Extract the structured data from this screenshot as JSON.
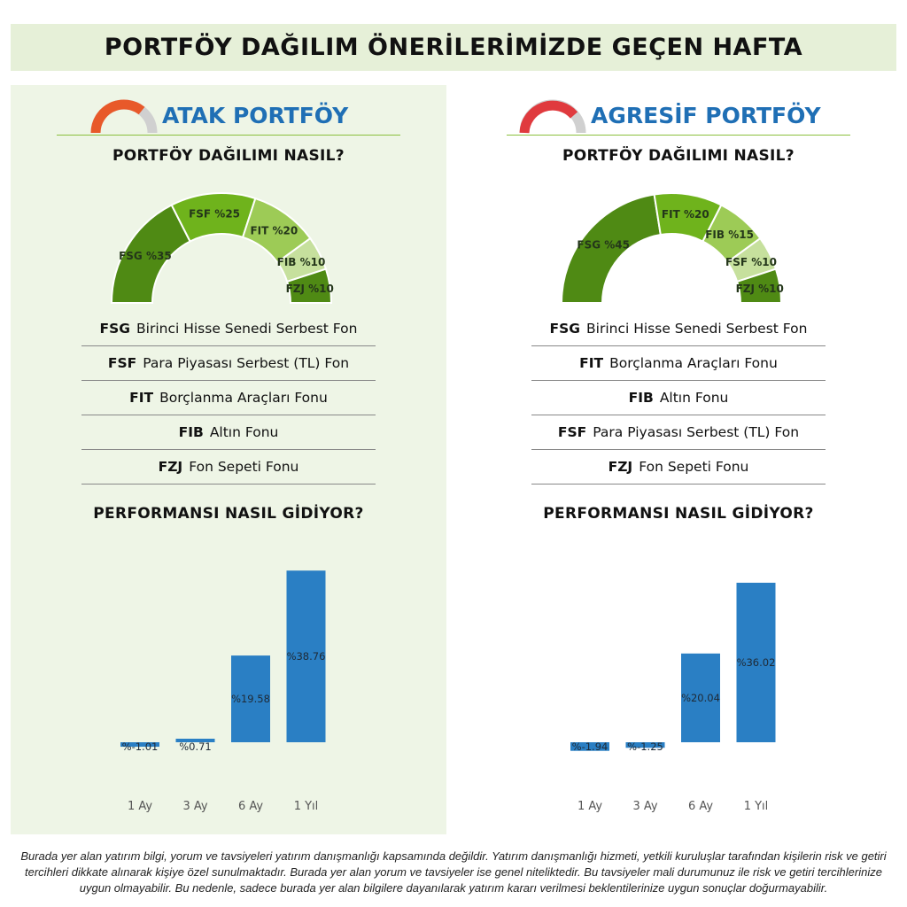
{
  "header": {
    "title": "PORTFÖY DAĞILIM ÖNERİLERİMİZDE GEÇEN HAFTA"
  },
  "colors": {
    "left_panel_bg": "#eef5e6",
    "banner_bg": "#e6f0d8",
    "title_blue": "#1f6fb5",
    "bar_blue": "#2a7fc4",
    "gauge_greens": [
      "#4f8a14",
      "#6fb31c",
      "#9dcb56",
      "#c6e09d",
      "#4f8a14"
    ]
  },
  "left": {
    "title": "ATAK PORTFÖY",
    "logo_icon": "gauge-icon-orange",
    "allocation_heading": "PORTFÖY DAĞILIMI NASIL?",
    "performance_heading": "PERFORMANSI NASIL GİDİYOR?",
    "legend": [
      {
        "code": "FSG",
        "name": "Birinci Hisse Senedi Serbest Fon"
      },
      {
        "code": "FSF",
        "name": "Para Piyasası Serbest (TL) Fon"
      },
      {
        "code": "FIT",
        "name": "Borçlanma Araçları Fonu"
      },
      {
        "code": "FIB",
        "name": "Altın Fonu"
      },
      {
        "code": "FZJ",
        "name": "Fon Sepeti Fonu"
      }
    ]
  },
  "right": {
    "title": "AGRESİF PORTFÖY",
    "logo_icon": "gauge-icon-red",
    "allocation_heading": "PORTFÖY DAĞILIMI NASIL?",
    "performance_heading": "PERFORMANSI NASIL GİDİYOR?",
    "legend": [
      {
        "code": "FSG",
        "name": "Birinci Hisse Senedi Serbest Fon"
      },
      {
        "code": "FIT",
        "name": "Borçlanma Araçları Fonu"
      },
      {
        "code": "FIB",
        "name": "Altın Fonu"
      },
      {
        "code": "FSF",
        "name": "Para Piyasası Serbest (TL) Fon"
      },
      {
        "code": "FZJ",
        "name": "Fon Sepeti Fonu"
      }
    ]
  },
  "chart_data": [
    {
      "type": "pie",
      "variant": "half-donut",
      "title": "",
      "categories": [
        "FSG",
        "FSF",
        "FIT",
        "FIB",
        "FZJ"
      ],
      "values": [
        35,
        25,
        20,
        10,
        10
      ],
      "labels": [
        "FSG %35",
        "FSF %25",
        "FIT %20",
        "FIB %10",
        "FZJ %10"
      ],
      "colors": [
        "#4f8a14",
        "#6fb31c",
        "#9dcb56",
        "#c6e09d",
        "#4f8a14"
      ]
    },
    {
      "type": "bar",
      "title": "",
      "categories": [
        "1 Ay",
        "3 Ay",
        "6 Ay",
        "1 Yıl"
      ],
      "values": [
        -1.01,
        0.71,
        19.58,
        38.76
      ],
      "labels": [
        "%-1.01",
        "%0.71",
        "%19.58",
        "%38.76"
      ],
      "ylim": [
        -5,
        42
      ],
      "grid": false,
      "color": "#2a7fc4"
    },
    {
      "type": "pie",
      "variant": "half-donut",
      "title": "",
      "categories": [
        "FSG",
        "FIT",
        "FIB",
        "FSF",
        "FZJ"
      ],
      "values": [
        45,
        20,
        15,
        10,
        10
      ],
      "labels": [
        "FSG %45",
        "FIT %20",
        "FIB %15",
        "FSF %10",
        "FZJ %10"
      ],
      "colors": [
        "#4f8a14",
        "#6fb31c",
        "#9dcb56",
        "#c6e09d",
        "#4f8a14"
      ]
    },
    {
      "type": "bar",
      "title": "",
      "categories": [
        "1 Ay",
        "3 Ay",
        "6 Ay",
        "1 Yıl"
      ],
      "values": [
        -1.94,
        -1.25,
        20.04,
        36.02
      ],
      "labels": [
        "%-1.94",
        "%-1.25",
        "%20.04",
        "%36.02"
      ],
      "ylim": [
        -5,
        42
      ],
      "grid": false,
      "color": "#2a7fc4"
    }
  ],
  "disclaimer": "Burada yer alan yatırım bilgi, yorum ve tavsiyeleri yatırım danışmanlığı kapsamında değildir. Yatırım danışmanlığı hizmeti, yetkili kuruluşlar tarafından kişilerin risk ve getiri tercihleri dikkate alınarak kişiye özel sunulmaktadır. Burada yer alan yorum ve tavsiyeler ise genel niteliktedir. Bu tavsiyeler mali durumunuz ile risk ve getiri tercihlerinize uygun olmayabilir. Bu nedenle, sadece burada yer alan bilgilere dayanılarak yatırım kararı verilmesi beklentilerinize uygun sonuçlar doğurmayabilir."
}
